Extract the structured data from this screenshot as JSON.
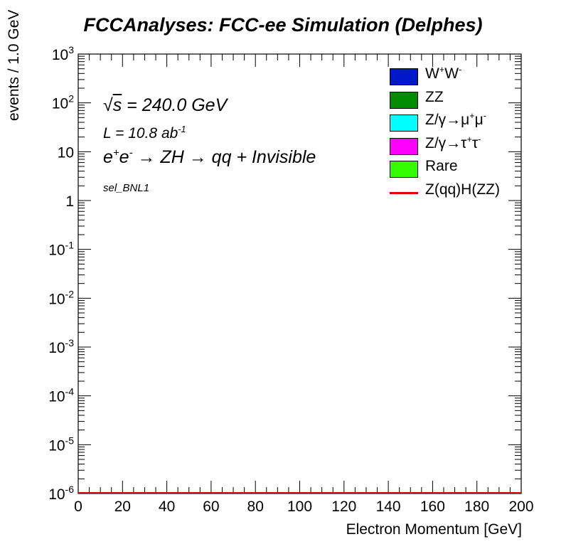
{
  "title": "FCCAnalyses: FCC-ee Simulation (Delphes)",
  "annotations": {
    "sqrts_symbol": "√",
    "sqrts_var": "s",
    "sqrts_value": " = 240.0 GeV",
    "lumi_prefix": "L = 10.8 ab",
    "lumi_exp": "-1",
    "process": "e+e- → ZH → qq + Invisible",
    "process_parts": {
      "e1": "e",
      "e1_sup": "+",
      "e2": "e",
      "e2_sup": "-",
      "rest": " → ZH → qq + Invisible"
    },
    "selection": "sel_BNL1"
  },
  "colors": {
    "WW": "#0019c8",
    "ZZ": "#008c00",
    "Zmumu": "#00ffff",
    "Ztautau": "#ff00ff",
    "Rare": "#33ff00",
    "signal": "#e00000"
  },
  "legend": [
    {
      "label": "W+W-",
      "parts": [
        "W",
        "+",
        "W",
        "-"
      ],
      "kind": "fill",
      "color_key": "WW"
    },
    {
      "label": "ZZ",
      "kind": "fill",
      "color_key": "ZZ"
    },
    {
      "label": "Z/γ→μ+μ-",
      "parts": [
        "Z/γ→μ",
        "+",
        "μ",
        "-"
      ],
      "kind": "fill",
      "color_key": "Zmumu"
    },
    {
      "label": "Z/γ→τ+τ-",
      "parts": [
        "Z/γ→τ",
        "+",
        "τ",
        "-"
      ],
      "kind": "fill",
      "color_key": "Ztautau"
    },
    {
      "label": "Rare",
      "kind": "fill",
      "color_key": "Rare"
    },
    {
      "label": "Z(qq)H(ZZ)",
      "kind": "line",
      "color_key": "signal"
    }
  ],
  "chart_data": {
    "type": "bar",
    "title": "FCCAnalyses: FCC-ee Simulation (Delphes)",
    "xlabel": "Electron Momentum [GeV]",
    "ylabel": "events / 1.0 GeV",
    "xlim": [
      0,
      200
    ],
    "ylim": [
      1e-06,
      1000
    ],
    "yscale": "log",
    "x_ticks": [
      "0",
      "20",
      "40",
      "60",
      "80",
      "100",
      "120",
      "140",
      "160",
      "180",
      "200"
    ],
    "y_ticks": [
      {
        "base": "10",
        "exp": "-6"
      },
      {
        "base": "10",
        "exp": "-5"
      },
      {
        "base": "10",
        "exp": "-4"
      },
      {
        "base": "10",
        "exp": "-3"
      },
      {
        "base": "10",
        "exp": "-2"
      },
      {
        "base": "10",
        "exp": "-1"
      },
      {
        "base": "1",
        "exp": ""
      },
      {
        "base": "10",
        "exp": ""
      },
      {
        "base": "10",
        "exp": "2"
      },
      {
        "base": "10",
        "exp": "3"
      }
    ],
    "series": [
      {
        "name": "Z(qq)H(ZZ)",
        "kind": "line",
        "x": [
          0,
          200
        ],
        "values": [
          1e-06,
          1e-06
        ]
      }
    ],
    "grid": false,
    "legend_position": "top-right"
  }
}
